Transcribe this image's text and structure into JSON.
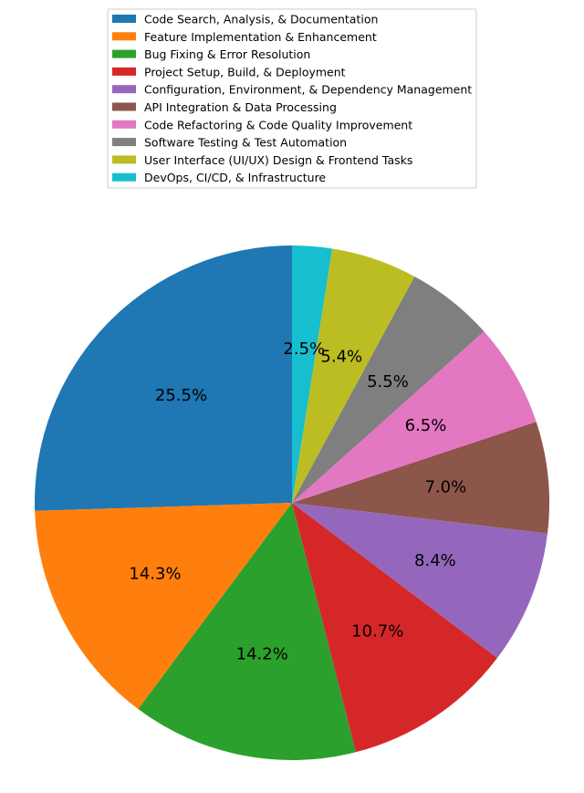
{
  "chart_data": {
    "type": "pie",
    "title": "",
    "start_angle_deg": 90,
    "direction": "counterclockwise",
    "legend_position": "top-center",
    "series": [
      {
        "name": "Code Search, Analysis, & Documentation",
        "value": 25.5,
        "label": "25.5%",
        "color": "#1f77b4"
      },
      {
        "name": "Feature Implementation & Enhancement",
        "value": 14.3,
        "label": "14.3%",
        "color": "#ff7f0e"
      },
      {
        "name": "Bug Fixing & Error Resolution",
        "value": 14.2,
        "label": "14.2%",
        "color": "#2ca02c"
      },
      {
        "name": "Project Setup, Build, & Deployment",
        "value": 10.7,
        "label": "10.7%",
        "color": "#d62728"
      },
      {
        "name": "Configuration, Environment, & Dependency Management",
        "value": 8.4,
        "label": "8.4%",
        "color": "#9467bd"
      },
      {
        "name": "API Integration & Data Processing",
        "value": 7.0,
        "label": "7.0%",
        "color": "#8c564b"
      },
      {
        "name": "Code Refactoring & Code Quality Improvement",
        "value": 6.5,
        "label": "6.5%",
        "color": "#e377c2"
      },
      {
        "name": "Software Testing & Test Automation",
        "value": 5.5,
        "label": "5.5%",
        "color": "#7f7f7f"
      },
      {
        "name": "User Interface (UI/UX) Design & Frontend Tasks",
        "value": 5.4,
        "label": "5.4%",
        "color": "#bcbd22"
      },
      {
        "name": "DevOps, CI/CD, & Infrastructure",
        "value": 2.5,
        "label": "2.5%",
        "color": "#17becf"
      }
    ]
  }
}
